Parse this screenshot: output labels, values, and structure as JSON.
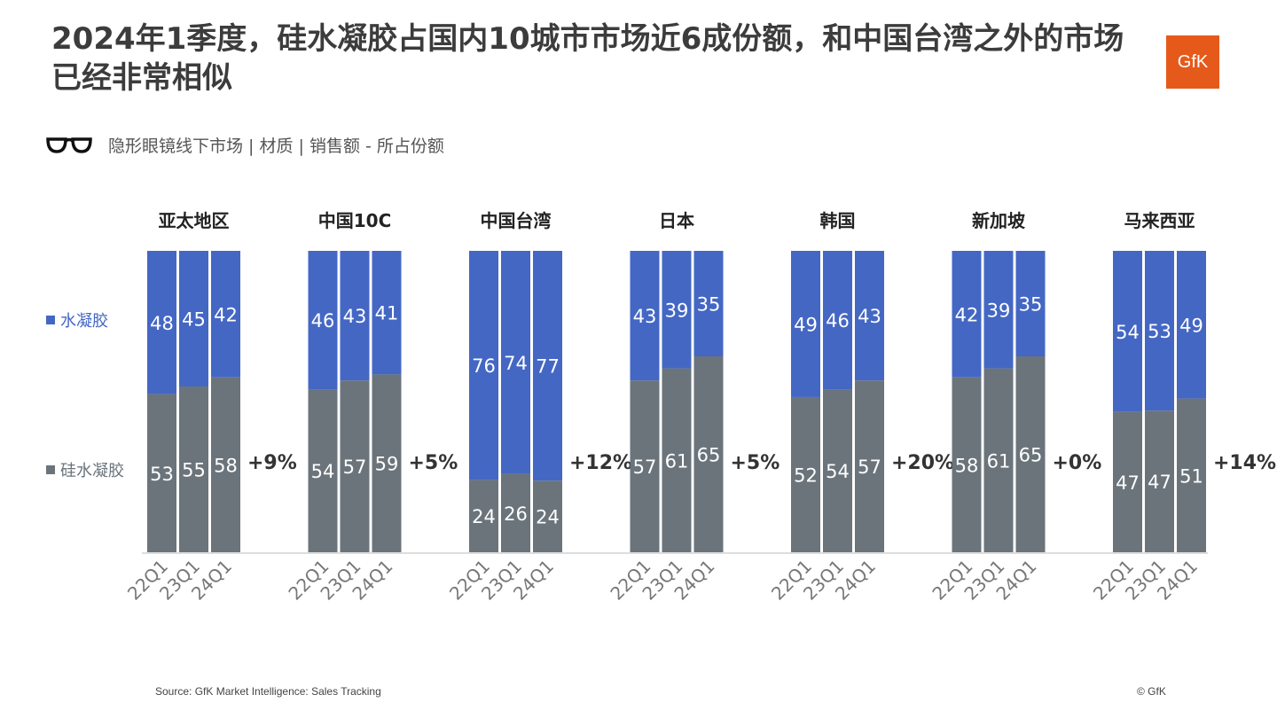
{
  "title": "2024年1季度，硅水凝胶占国内10城市市场近6成份额，和中国台湾之外的市场已经非常相似",
  "logo": "GfK",
  "subtitle": "隐形眼镜线下市场 | 材质 | 销售额 - 所占份额",
  "footer": {
    "source": "Source: GfK Market Intelligence: Sales Tracking",
    "copyright": "© GfK"
  },
  "chart_data": {
    "type": "bar",
    "stacked": true,
    "ylim": [
      0,
      100
    ],
    "grid": false,
    "legend_position": "left",
    "colors": {
      "水凝胶": "#4467C4",
      "硅水凝胶": "#6B747B"
    },
    "groups": [
      {
        "name": "亚太地区",
        "categories": [
          "22Q1",
          "23Q1",
          "24Q1"
        ],
        "水凝胶": [
          48,
          45,
          42
        ],
        "硅水凝胶": [
          53,
          55,
          58
        ],
        "change": "+9%"
      },
      {
        "name": "中国10C",
        "categories": [
          "22Q1",
          "23Q1",
          "24Q1"
        ],
        "水凝胶": [
          46,
          43,
          41
        ],
        "硅水凝胶": [
          54,
          57,
          59
        ],
        "change": "+5%"
      },
      {
        "name": "中国台湾",
        "categories": [
          "22Q1",
          "23Q1",
          "24Q1"
        ],
        "水凝胶": [
          76,
          74,
          77
        ],
        "硅水凝胶": [
          24,
          26,
          24
        ],
        "change": "+12%"
      },
      {
        "name": "日本",
        "categories": [
          "22Q1",
          "23Q1",
          "24Q1"
        ],
        "水凝胶": [
          43,
          39,
          35
        ],
        "硅水凝胶": [
          57,
          61,
          65
        ],
        "change": "+5%"
      },
      {
        "name": "韩国",
        "categories": [
          "22Q1",
          "23Q1",
          "24Q1"
        ],
        "水凝胶": [
          49,
          46,
          43
        ],
        "硅水凝胶": [
          52,
          54,
          57
        ],
        "change": "+20%"
      },
      {
        "name": "新加坡",
        "categories": [
          "22Q1",
          "23Q1",
          "24Q1"
        ],
        "水凝胶": [
          42,
          39,
          35
        ],
        "硅水凝胶": [
          58,
          61,
          65
        ],
        "change": "+0%"
      },
      {
        "name": "马来西亚",
        "categories": [
          "22Q1",
          "23Q1",
          "24Q1"
        ],
        "水凝胶": [
          54,
          53,
          49
        ],
        "硅水凝胶": [
          47,
          47,
          51
        ],
        "change": "+14%"
      }
    ],
    "series": [
      {
        "name": "水凝胶"
      },
      {
        "name": "硅水凝胶"
      }
    ]
  }
}
